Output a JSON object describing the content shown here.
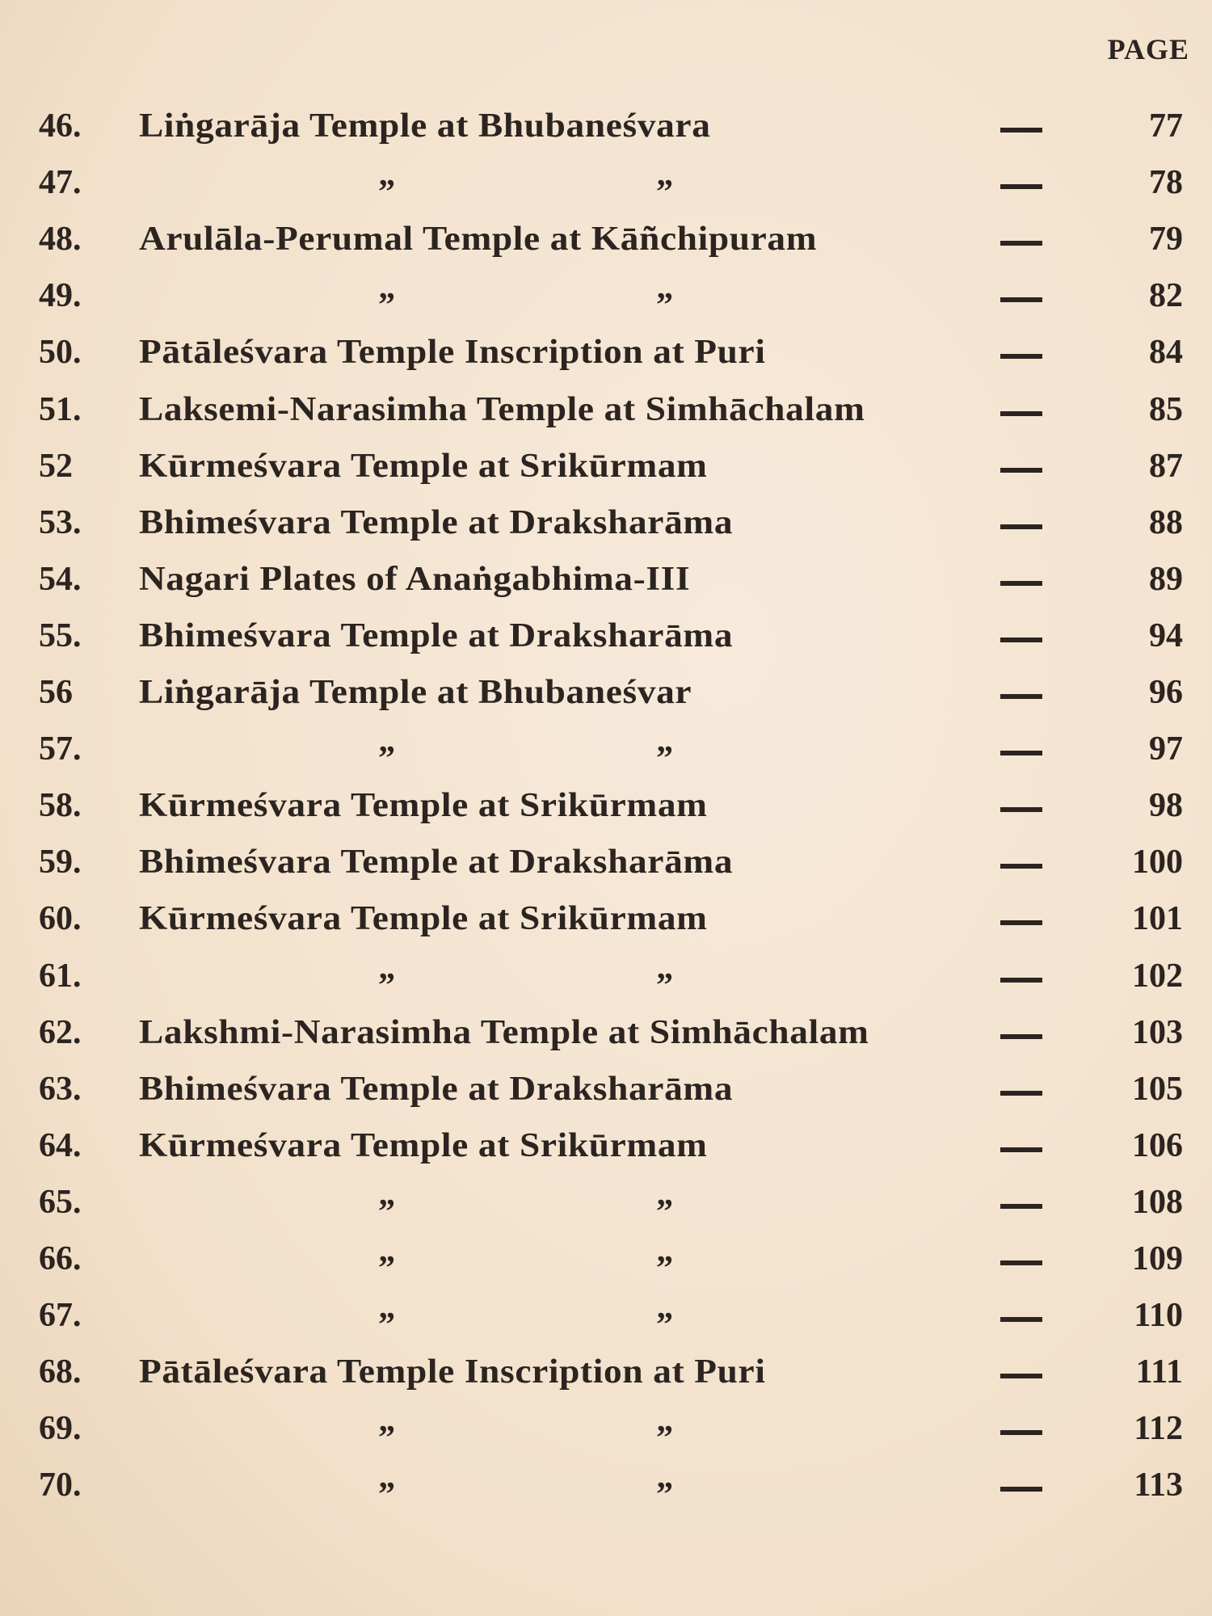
{
  "header": {
    "page_label": "PAGE"
  },
  "rows": [
    {
      "num": "46.",
      "title": "Liṅgarāja Temple at Bhubaneśvara",
      "ditto": [
        "",
        ""
      ],
      "page": "77"
    },
    {
      "num": "47.",
      "title": "",
      "ditto": [
        "”",
        "”"
      ],
      "page": "78"
    },
    {
      "num": "48.",
      "title": "Arulāla-Perumal Temple at Kāñchipuram",
      "ditto": [
        "",
        ""
      ],
      "page": "79"
    },
    {
      "num": "49.",
      "title": "",
      "ditto": [
        "”",
        "”"
      ],
      "page": "82"
    },
    {
      "num": "50.",
      "title": "Pātāleśvara  Temple Inscription at Puri",
      "ditto": [
        "",
        ""
      ],
      "page": "84"
    },
    {
      "num": "51.",
      "title": "Laksemi-Narasimha Temple at Simhāchalam",
      "ditto": [
        "",
        ""
      ],
      "page": "85"
    },
    {
      "num": "52",
      "title": "Kūrmeśvara Temple at Srikūrmam",
      "ditto": [
        "",
        ""
      ],
      "page": "87"
    },
    {
      "num": "53.",
      "title": "Bhimeśvara Temple at Draksharāma",
      "ditto": [
        "",
        ""
      ],
      "page": "88"
    },
    {
      "num": "54.",
      "title": "Nagari Plates of Anaṅgabhima-III",
      "ditto": [
        "",
        ""
      ],
      "page": "89"
    },
    {
      "num": "55.",
      "title": "Bhimeśvara  Temple at Draksharāma",
      "ditto": [
        "",
        ""
      ],
      "page": "94"
    },
    {
      "num": "56",
      "title": " Liṅgarāja Temple at Bhubaneśvar",
      "ditto": [
        "",
        ""
      ],
      "page": "96"
    },
    {
      "num": "57.",
      "title": "",
      "ditto": [
        "”",
        "”"
      ],
      "page": "97"
    },
    {
      "num": "58.",
      "title": "Kūrmeśvara  Temple at Srikūrmam",
      "ditto": [
        "",
        ""
      ],
      "page": "98"
    },
    {
      "num": "59.",
      "title": "Bhimeśvara  Temple at Draksharāma",
      "ditto": [
        "",
        ""
      ],
      "page": "100"
    },
    {
      "num": "60.",
      "title": "Kūrmeśvara  Temple at Srikūrmam",
      "ditto": [
        "",
        ""
      ],
      "page": "101"
    },
    {
      "num": "61.",
      "title": "",
      "ditto": [
        "”",
        "”"
      ],
      "page": "102"
    },
    {
      "num": "62.",
      "title": "Lakshmi-Narasimha Temple at Simhāchalam",
      "ditto": [
        "",
        ""
      ],
      "page": "103"
    },
    {
      "num": "63.",
      "title": "Bhimeśvara Temple at Draksharāma",
      "ditto": [
        "",
        ""
      ],
      "page": "105"
    },
    {
      "num": "64.",
      "title": "Kūrmeśvara Temple at Srikūrmam",
      "ditto": [
        "",
        ""
      ],
      "page": "106"
    },
    {
      "num": "65.",
      "title": "",
      "ditto": [
        "”",
        "”"
      ],
      "page": "108"
    },
    {
      "num": "66.",
      "title": "",
      "ditto": [
        "”",
        "”"
      ],
      "page": "109"
    },
    {
      "num": "67.",
      "title": "",
      "ditto": [
        "”",
        "”"
      ],
      "page": "110"
    },
    {
      "num": "68.",
      "title": "Pātāleśvara Temple Inscription at Puri",
      "ditto": [
        "",
        ""
      ],
      "page": "111"
    },
    {
      "num": "69.",
      "title": "",
      "ditto": [
        "”",
        "”"
      ],
      "page": "112"
    },
    {
      "num": "70.",
      "title": "",
      "ditto": [
        "”",
        "”"
      ],
      "page": "113"
    }
  ],
  "colors": {
    "paper": "#f4e4cf",
    "ink": "#2b2420"
  }
}
